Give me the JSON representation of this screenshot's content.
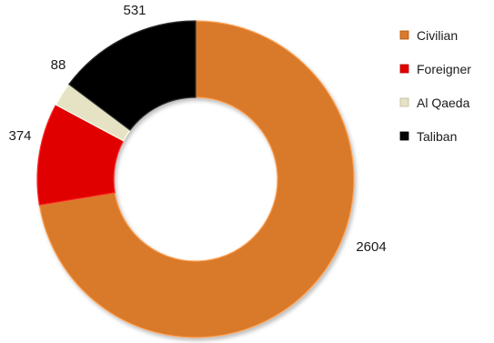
{
  "chart_data": {
    "type": "pie",
    "variant": "doughnut",
    "categories": [
      "Civilian",
      "Foreigner",
      "Al Qaeda",
      "Taliban"
    ],
    "values": [
      2604,
      374,
      88,
      531
    ],
    "colors": [
      "#d97a2c",
      "#e00000",
      "#e6e2c4",
      "#050505"
    ],
    "data_labels": [
      "2604",
      "374",
      "88",
      "531"
    ],
    "legend": {
      "placement": "right",
      "entries": [
        "Civilian",
        "Foreigner",
        "Al Qaeda",
        "Taliban"
      ]
    },
    "start_angle": "12 o'clock",
    "direction": "clockwise"
  }
}
